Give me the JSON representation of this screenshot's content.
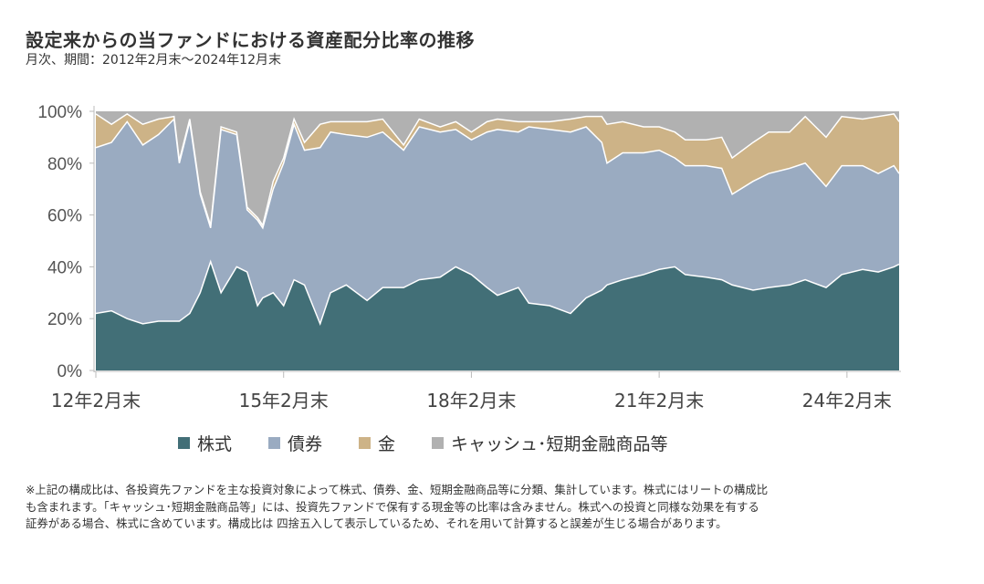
{
  "chart_data": {
    "type": "area",
    "stacked": true,
    "title": "設定来からの当ファンドにおける資産配分比率の推移",
    "subtitle": "月次、期間：2012年2月末～2024年12月末",
    "x_unit": "months since 2012-02",
    "x": [
      0,
      3,
      6,
      9,
      12,
      15,
      16,
      18,
      20,
      22,
      24,
      27,
      29,
      31,
      32,
      34,
      36,
      38,
      40,
      43,
      45,
      48,
      52,
      55,
      59,
      62,
      66,
      69,
      72,
      75,
      77,
      81,
      83,
      87,
      91,
      94,
      97,
      98,
      101,
      105,
      108,
      111,
      113,
      117,
      120,
      122,
      126,
      129,
      133,
      136,
      140,
      143,
      147,
      150,
      153,
      154
    ],
    "series": [
      {
        "name": "株式",
        "color": "#426f77",
        "values": [
          22,
          23,
          20,
          18,
          19,
          19,
          19,
          22,
          30,
          42,
          30,
          40,
          38,
          25,
          28,
          30,
          25,
          35,
          33,
          18,
          30,
          33,
          27,
          32,
          32,
          35,
          36,
          40,
          37,
          32,
          29,
          32,
          26,
          25,
          22,
          28,
          31,
          33,
          35,
          37,
          39,
          40,
          37,
          36,
          35,
          33,
          31,
          32,
          33,
          35,
          32,
          37,
          39,
          38,
          40,
          41
        ]
      },
      {
        "name": "債券",
        "color": "#9aabc1",
        "values": [
          64,
          65,
          76,
          69,
          72,
          78,
          61,
          74,
          38,
          13,
          63,
          51,
          24,
          33,
          27,
          40,
          55,
          60,
          52,
          68,
          62,
          58,
          63,
          60,
          53,
          59,
          56,
          53,
          52,
          60,
          64,
          60,
          68,
          68,
          70,
          66,
          57,
          47,
          49,
          47,
          46,
          42,
          42,
          43,
          43,
          35,
          42,
          44,
          45,
          45,
          39,
          42,
          40,
          38,
          39,
          35
        ]
      },
      {
        "name": "金",
        "color": "#cdb387",
        "values": [
          13,
          7,
          3,
          8,
          6,
          1,
          1,
          1,
          1,
          1,
          1,
          1,
          1,
          1,
          1,
          3,
          2,
          2,
          3,
          9,
          4,
          5,
          6,
          5,
          2,
          3,
          2,
          3,
          3,
          4,
          4,
          4,
          2,
          3,
          5,
          4,
          10,
          15,
          12,
          10,
          9,
          10,
          10,
          10,
          12,
          14,
          15,
          16,
          14,
          18,
          19,
          19,
          18,
          22,
          20,
          20
        ]
      },
      {
        "name": "キャッシュ･短期金融商品等",
        "color": "#b1b1b1",
        "values": [
          1,
          5,
          1,
          5,
          3,
          2,
          19,
          3,
          31,
          44,
          6,
          8,
          37,
          41,
          44,
          27,
          18,
          3,
          12,
          5,
          4,
          4,
          4,
          3,
          13,
          3,
          6,
          4,
          8,
          4,
          3,
          4,
          4,
          4,
          3,
          2,
          2,
          5,
          4,
          6,
          6,
          8,
          11,
          11,
          10,
          18,
          12,
          8,
          8,
          2,
          10,
          2,
          3,
          2,
          1,
          4
        ]
      }
    ],
    "ylim": [
      0,
      100
    ],
    "xlim": [
      0,
      154
    ],
    "y_ticks": [
      "0%",
      "20%",
      "40%",
      "60%",
      "80%",
      "100%"
    ],
    "x_ticks": [
      {
        "m": 0,
        "label": "12年2月末"
      },
      {
        "m": 36,
        "label": "15年2月末"
      },
      {
        "m": 72,
        "label": "18年2月末"
      },
      {
        "m": 108,
        "label": "21年2月末"
      },
      {
        "m": 144,
        "label": "24年2月末"
      }
    ],
    "legend_position": "bottom"
  },
  "footnote": [
    "※上記の構成比は、各投資先ファンドを主な投資対象によって株式、債券、金、短期金融商品等に分類、集計しています。株式にはリートの構成比",
    "も含まれます。「キャッシュ･短期金融商品等」には、投資先ファンドで保有する現金等の比率は含みません。株式への投資と同様な効果を有する",
    "証券がある場合、株式に含めています。構成比は 四捨五入して表示しているため、それを用いて計算すると誤差が生じる場合があります。"
  ]
}
